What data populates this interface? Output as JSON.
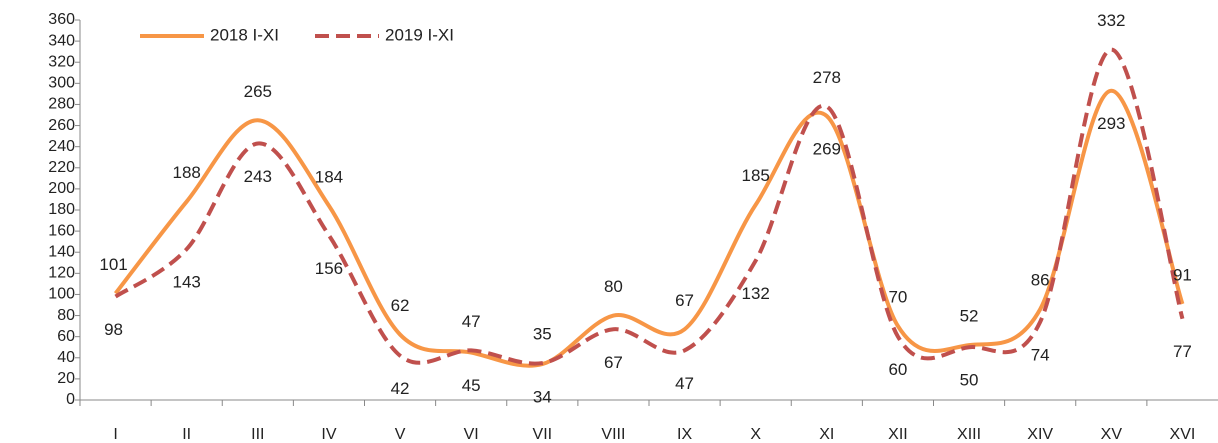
{
  "chart_data": {
    "type": "line",
    "categories": [
      "I",
      "II",
      "III",
      "IV",
      "V",
      "VI",
      "VII",
      "VIII",
      "IX",
      "X",
      "XI",
      "XII",
      "XIII",
      "XIV",
      "XV",
      "XVI"
    ],
    "series": [
      {
        "name": "2018 I-XI",
        "color": "#f79646",
        "style": "solid",
        "values": [
          101,
          188,
          265,
          184,
          62,
          45,
          34,
          80,
          67,
          185,
          269,
          70,
          52,
          86,
          293,
          91
        ]
      },
      {
        "name": "2019 I-XI",
        "color": "#c0504d",
        "style": "dashed",
        "values": [
          98,
          143,
          243,
          156,
          42,
          47,
          35,
          67,
          47,
          132,
          278,
          60,
          50,
          74,
          332,
          77
        ]
      }
    ],
    "ylim": [
      0,
      360
    ],
    "yticks": [
      0,
      20,
      40,
      60,
      80,
      100,
      120,
      140,
      160,
      180,
      200,
      220,
      240,
      260,
      280,
      300,
      320,
      340,
      360
    ],
    "grid": false,
    "smooth": true,
    "legend": "upper left"
  }
}
